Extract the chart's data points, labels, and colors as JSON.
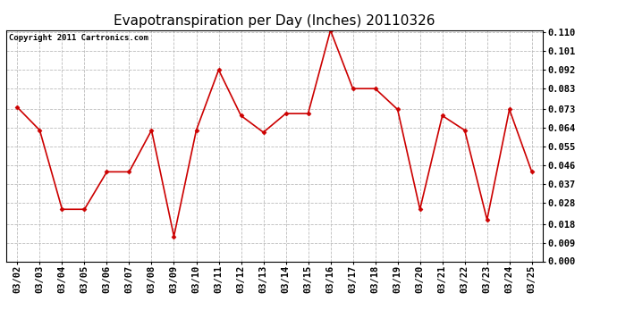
{
  "title": "Evapotranspiration per Day (Inches) 20110326",
  "copyright": "Copyright 2011 Cartronics.com",
  "dates": [
    "03/02",
    "03/03",
    "03/04",
    "03/05",
    "03/06",
    "03/07",
    "03/08",
    "03/09",
    "03/10",
    "03/11",
    "03/12",
    "03/13",
    "03/14",
    "03/15",
    "03/16",
    "03/17",
    "03/18",
    "03/19",
    "03/20",
    "03/21",
    "03/22",
    "03/23",
    "03/24",
    "03/25"
  ],
  "values": [
    0.074,
    0.063,
    0.025,
    0.025,
    0.043,
    0.043,
    0.063,
    0.012,
    0.063,
    0.092,
    0.07,
    0.062,
    0.071,
    0.071,
    0.111,
    0.083,
    0.083,
    0.073,
    0.025,
    0.07,
    0.063,
    0.02,
    0.073,
    0.043
  ],
  "ylim": [
    0.0,
    0.1111
  ],
  "yticks": [
    0.0,
    0.009,
    0.018,
    0.028,
    0.037,
    0.046,
    0.055,
    0.064,
    0.073,
    0.083,
    0.092,
    0.101,
    0.11
  ],
  "line_color": "#cc0000",
  "marker": "D",
  "marker_size": 2.5,
  "bg_color": "#ffffff",
  "plot_bg_color": "#ffffff",
  "grid_color": "#bbbbbb",
  "title_fontsize": 11,
  "tick_fontsize": 7.5,
  "copyright_fontsize": 6.5
}
